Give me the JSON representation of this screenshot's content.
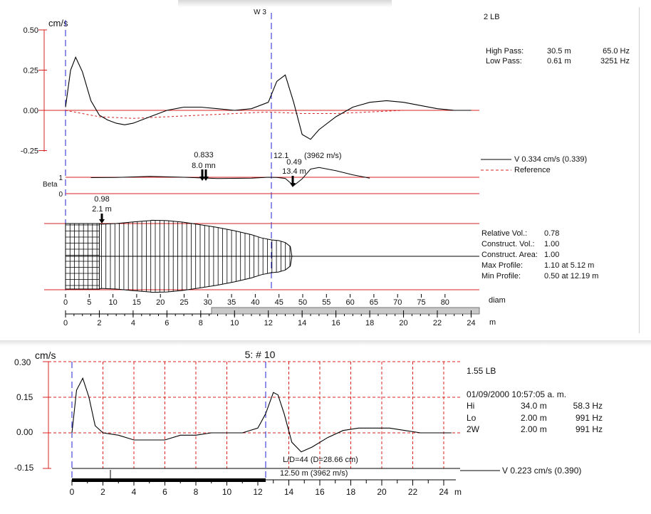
{
  "top_panel": {
    "title_fragment": "W 3",
    "label": "2 LB",
    "filters": [
      {
        "name": "High Pass:",
        "length": "30.5 m",
        "freq": "65.0 Hz"
      },
      {
        "name": "Low Pass:",
        "length": "0.61 m",
        "freq": "3251 Hz"
      }
    ],
    "legend": {
      "v_label": "V  0.334 cm/s  (0.339)",
      "ref_label": "Reference"
    },
    "beta_label": "Beta",
    "beta_ticks": [
      "1",
      "0"
    ],
    "annotations": {
      "a1_top": "0.833",
      "a1_bot": "8.0 mn",
      "a2_top": "12.1",
      "a2_speed": "(3962 m/s)",
      "a3_top": "0.49",
      "a3_bot": "13.4 m",
      "a4_top": "0.98",
      "a4_bot": "2.1 m"
    },
    "stats": [
      {
        "label": "Relative Vol.:",
        "value": "0.78"
      },
      {
        "label": "Construct. Vol.:",
        "value": "1.00"
      },
      {
        "label": "Construct. Area:",
        "value": "1.00"
      },
      {
        "label": "Max Profile:",
        "value": "1.10 at 5.12 m"
      },
      {
        "label": "Min Profile:",
        "value": "0.50 at 12.19 m"
      }
    ],
    "diam_unit": "diam",
    "m_unit": "m"
  },
  "bottom_panel": {
    "title": "5: # 10",
    "label": "1.55 LB",
    "datetime": "01/09/2000 10:57:05 a. m.",
    "filters": [
      {
        "name": "Hi",
        "length": "34.0 m",
        "freq": "58.3 Hz"
      },
      {
        "name": "Lo",
        "length": "2.00 m",
        "freq": "991 Hz"
      },
      {
        "name": "2W",
        "length": "2.00 m",
        "freq": "991 Hz"
      }
    ],
    "ld_label": "L/D=44 (D=28.66 cm)",
    "speed_label": "12.50 m (3962 m/s)",
    "legend_v": "V  0.223 cm/s  (0.390)",
    "m_unit": "m"
  },
  "chart_data": [
    {
      "type": "line",
      "ylabel": "cm/s",
      "ylim": [
        -0.25,
        0.5
      ],
      "yticks": [
        "0.50",
        "0.25",
        "0.00",
        "-0.25"
      ],
      "xlim": [
        0,
        24.5
      ],
      "series": [
        {
          "name": "V",
          "x": [
            0,
            0.3,
            0.6,
            1.0,
            1.5,
            2.0,
            2.5,
            3.0,
            3.5,
            4.0,
            5.0,
            6.0,
            7.0,
            8.0,
            9.0,
            10.0,
            11.0,
            12.0,
            12.5,
            13.0,
            13.5,
            14.0,
            14.5,
            15.0,
            16.0,
            17.0,
            18.0,
            19.0,
            20.0,
            21.0,
            22.0,
            23.0,
            24.0
          ],
          "y": [
            0.02,
            0.25,
            0.33,
            0.24,
            0.06,
            -0.03,
            -0.06,
            -0.08,
            -0.09,
            -0.08,
            -0.04,
            0.0,
            0.02,
            0.02,
            0.01,
            0.0,
            0.01,
            0.05,
            0.18,
            0.22,
            0.05,
            -0.15,
            -0.18,
            -0.12,
            -0.04,
            0.02,
            0.05,
            0.06,
            0.05,
            0.03,
            0.01,
            0.0,
            0.0
          ]
        },
        {
          "name": "Reference",
          "x": [
            0,
            1,
            2,
            4,
            6,
            8,
            10,
            12,
            14,
            16,
            18,
            20,
            22,
            24
          ],
          "y": [
            0.0,
            -0.02,
            -0.04,
            -0.05,
            -0.04,
            -0.03,
            -0.02,
            -0.01,
            -0.02,
            -0.02,
            -0.01,
            0.0,
            0.0,
            0.0
          ]
        }
      ]
    },
    {
      "type": "line",
      "ylabel": "Beta",
      "yticks": [
        "1",
        "0"
      ],
      "series": [
        {
          "name": "Beta",
          "x": [
            1.5,
            3,
            5,
            7,
            9,
            11,
            12,
            12.5,
            13.0,
            13.5,
            14.0,
            14.5,
            15.0,
            16.0,
            17.0,
            18.0
          ],
          "y": [
            0.98,
            0.99,
            1.05,
            1.0,
            0.92,
            0.95,
            1.0,
            0.99,
            0.93,
            0.49,
            0.9,
            1.5,
            1.6,
            1.4,
            1.15,
            0.95
          ]
        }
      ]
    },
    {
      "type": "line",
      "ylabel": "cm/s",
      "title": "5: # 10",
      "ylim": [
        -0.15,
        0.3
      ],
      "yticks": [
        "0.30",
        "0.15",
        "0.00",
        "-0.15"
      ],
      "xlim": [
        0,
        25
      ],
      "xticks": [
        "0",
        "2",
        "4",
        "6",
        "8",
        "10",
        "12",
        "14",
        "16",
        "18",
        "20",
        "22",
        "24"
      ],
      "series": [
        {
          "name": "V",
          "x": [
            0,
            0.3,
            0.7,
            1.1,
            1.5,
            2.0,
            3.0,
            4.0,
            5.0,
            6.0,
            7.0,
            8.0,
            9.0,
            10.0,
            11.0,
            12.0,
            12.5,
            13.0,
            13.3,
            13.7,
            14.2,
            14.8,
            15.5,
            16.5,
            17.5,
            18.5,
            19.5,
            20.5,
            21.5,
            22.5,
            23.5,
            24.5
          ],
          "y": [
            0.0,
            0.18,
            0.23,
            0.15,
            0.03,
            0.0,
            -0.01,
            -0.03,
            -0.03,
            -0.03,
            -0.01,
            -0.01,
            0.0,
            0.0,
            0.0,
            0.02,
            0.08,
            0.17,
            0.16,
            0.08,
            -0.04,
            -0.08,
            -0.06,
            -0.02,
            0.01,
            0.02,
            0.02,
            0.02,
            0.01,
            0.0,
            0.0,
            0.0
          ]
        }
      ]
    }
  ]
}
